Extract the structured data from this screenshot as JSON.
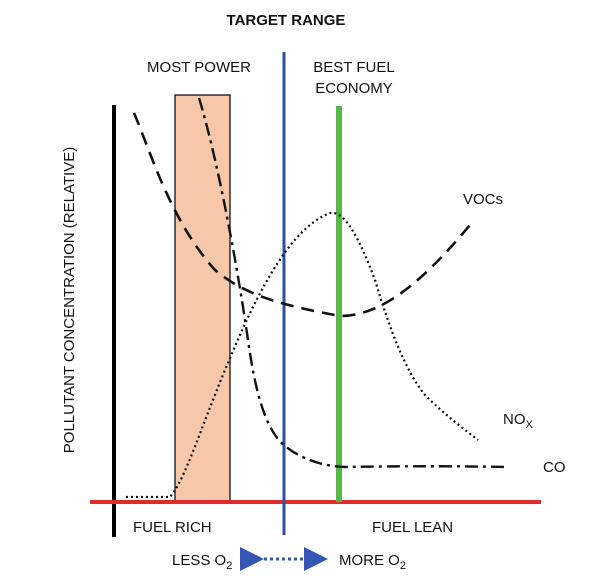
{
  "title": "TARGET RANGE",
  "y_axis_label": "POLLUTANT CONCENTRATION (RELATIVE)",
  "labels": {
    "most_power": "MOST POWER",
    "best_fuel_line1": "BEST FUEL",
    "best_fuel_line2": "ECONOMY",
    "vocs": "VOCs",
    "nox_main": "NO",
    "nox_sub": "X",
    "co": "CO",
    "fuel_rich": "FUEL RICH",
    "fuel_lean": "FUEL LEAN",
    "less_o2_main": "LESS O",
    "less_o2_sub": "2",
    "more_o2_main": "MORE O",
    "more_o2_sub": "2"
  },
  "colors": {
    "most_power_band": "#f7c7aa",
    "target_line": "#2e4fa8",
    "best_fuel_line": "#55b848",
    "baseline": "#e12a2a",
    "y_axis": "#000000",
    "curves": "#111111",
    "o2_arrow": "#3456b4"
  },
  "curves": [
    {
      "name": "VOCs",
      "line_style": "dashed"
    },
    {
      "name": "NOX",
      "line_style": "dotted"
    },
    {
      "name": "CO",
      "line_style": "dash-dot"
    }
  ]
}
